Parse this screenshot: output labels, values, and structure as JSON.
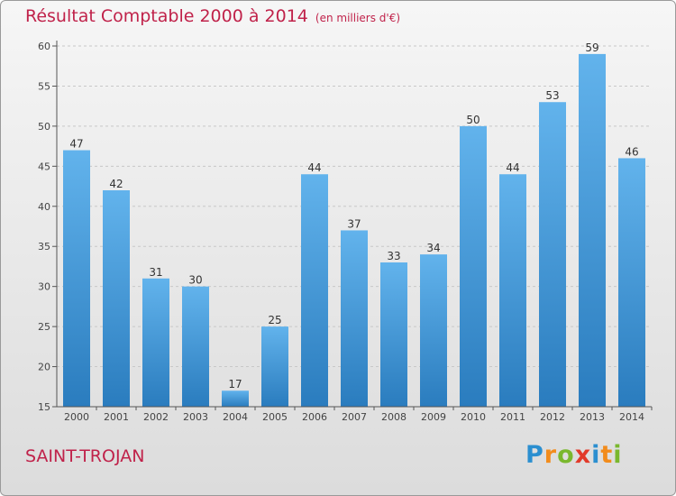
{
  "title": "Résultat Comptable 2000 à 2014",
  "subtitle": "(en milliers d'€)",
  "location": "SAINT-TROJAN",
  "logo": {
    "letters": [
      "P",
      "r",
      "o",
      "x",
      "i",
      "t",
      "i"
    ],
    "colors": [
      "#2b8fd0",
      "#f28c1c",
      "#7ab82e",
      "#e23a2a",
      "#2b8fd0",
      "#f28c1c",
      "#7ab82e"
    ]
  },
  "colors": {
    "title": "#c0224a",
    "bar_top": "#62b3ec",
    "bar_bottom": "#2a7cbe",
    "grid": "#c8c8c8"
  },
  "chart_data": {
    "type": "bar",
    "categories": [
      "2000",
      "2001",
      "2002",
      "2003",
      "2004",
      "2005",
      "2006",
      "2007",
      "2008",
      "2009",
      "2010",
      "2011",
      "2012",
      "2013",
      "2014"
    ],
    "values": [
      47,
      42,
      31,
      30,
      17,
      25,
      44,
      37,
      33,
      34,
      50,
      44,
      53,
      59,
      46
    ],
    "title": "Résultat Comptable 2000 à 2014",
    "subtitle": "(en milliers d'€)",
    "ylim": [
      15,
      60
    ],
    "yticks": [
      15,
      20,
      25,
      30,
      35,
      40,
      45,
      50,
      55,
      60
    ],
    "grid": true
  }
}
